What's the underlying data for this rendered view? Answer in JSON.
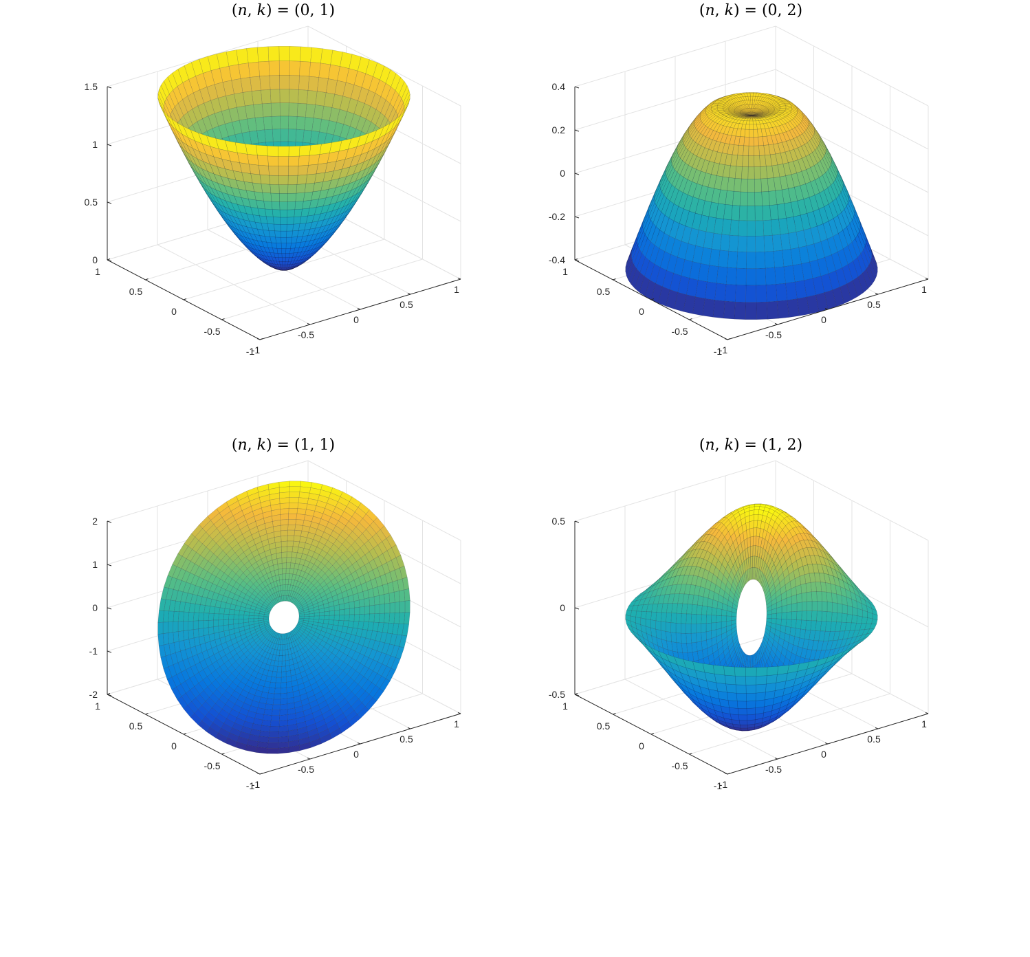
{
  "chart_data": [
    {
      "type": "surface",
      "title": "(n,k) = (0,1)",
      "n": 0,
      "k": 1,
      "x_ticks": [
        "-1",
        "-0.5",
        "0",
        "0.5",
        "1"
      ],
      "y_ticks": [
        "-1",
        "-0.5",
        "0",
        "0.5",
        "1"
      ],
      "z_ticks": [
        "0",
        "0.5",
        "1",
        "1.5"
      ],
      "xlim": [
        -1,
        1
      ],
      "ylim": [
        -1,
        1
      ],
      "zlim": [
        0,
        1.5
      ],
      "r_range": [
        0,
        1
      ],
      "colormap": "parula",
      "grid": true
    },
    {
      "type": "surface",
      "title": "(n,k) = (0,2)",
      "n": 0,
      "k": 2,
      "x_ticks": [
        "-1",
        "-0.5",
        "0",
        "0.5",
        "1"
      ],
      "y_ticks": [
        "-1",
        "-0.5",
        "0",
        "0.5",
        "1"
      ],
      "z_ticks": [
        "-0.4",
        "-0.2",
        "0",
        "0.2",
        "0.4"
      ],
      "xlim": [
        -1,
        1
      ],
      "ylim": [
        -1,
        1
      ],
      "zlim": [
        -0.4,
        0.4
      ],
      "r_range": [
        0,
        1
      ],
      "colormap": "parula",
      "grid": true
    },
    {
      "type": "surface",
      "title": "(n,k) = (1,1)",
      "n": 1,
      "k": 1,
      "x_ticks": [
        "-1",
        "-0.5",
        "0",
        "0.5",
        "1"
      ],
      "y_ticks": [
        "-1",
        "-0.5",
        "0",
        "0.5",
        "1"
      ],
      "z_ticks": [
        "-2",
        "-1",
        "0",
        "1",
        "2"
      ],
      "xlim": [
        -1,
        1
      ],
      "ylim": [
        -1,
        1
      ],
      "zlim": [
        -2,
        2
      ],
      "r_range": [
        0.12,
        1
      ],
      "colormap": "parula",
      "grid": true
    },
    {
      "type": "surface",
      "title": "(n,k) = (1,2)",
      "n": 1,
      "k": 2,
      "x_ticks": [
        "-1",
        "-0.5",
        "0",
        "0.5",
        "1"
      ],
      "y_ticks": [
        "-1",
        "-0.5",
        "0",
        "0.5",
        "1"
      ],
      "z_ticks": [
        "-0.5",
        "0",
        "0.5"
      ],
      "xlim": [
        -1,
        1
      ],
      "ylim": [
        -1,
        1
      ],
      "zlim": [
        -0.5,
        0.5
      ],
      "r_range": [
        0.12,
        1
      ],
      "colormap": "parula",
      "grid": true
    }
  ]
}
